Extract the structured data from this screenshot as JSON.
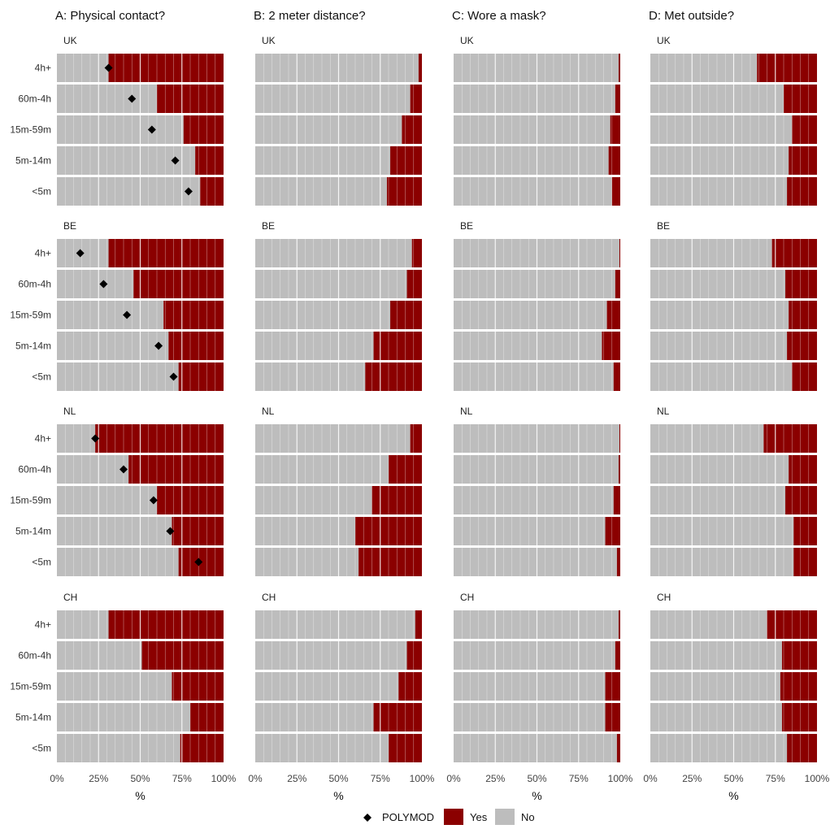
{
  "chart_data": {
    "type": "bar",
    "orientation": "horizontal-stacked-100",
    "panels_x_label": "%",
    "x_ticks": [
      "0%",
      "25%",
      "50%",
      "75%",
      "100%"
    ],
    "xlim": [
      0,
      100
    ],
    "categories": [
      "4h+",
      "60m-4h",
      "15m-59m",
      "5m-14m",
      "<5m"
    ],
    "countries": [
      "UK",
      "BE",
      "NL",
      "CH"
    ],
    "colors": {
      "no": "#bdbdbd",
      "yes": "#8b0000",
      "polymod": "#000000",
      "grid": "#ffffff"
    },
    "legend": {
      "position": "bottom",
      "items": [
        {
          "key": "polymod",
          "label": "POLYMOD",
          "icon": "diamond-icon"
        },
        {
          "key": "yes",
          "label": "Yes"
        },
        {
          "key": "no",
          "label": "No"
        }
      ]
    },
    "columns": [
      {
        "title": "A: Physical contact?",
        "yes_pct": {
          "UK": [
            69,
            40,
            24,
            17,
            14
          ],
          "BE": [
            69,
            54,
            36,
            33,
            27
          ],
          "NL": [
            77,
            57,
            40,
            31,
            27
          ],
          "CH": [
            69,
            49,
            31,
            20,
            26
          ]
        },
        "polymod_pct": {
          "UK": [
            31,
            45,
            57,
            71,
            79
          ],
          "BE": [
            14,
            28,
            42,
            61,
            70
          ],
          "NL": [
            23,
            40,
            58,
            68,
            85
          ],
          "CH": [
            null,
            null,
            null,
            null,
            null
          ]
        }
      },
      {
        "title": "B: 2 meter distance?",
        "yes_pct": {
          "UK": [
            2,
            7,
            12,
            19,
            21
          ],
          "BE": [
            6,
            9,
            19,
            29,
            34
          ],
          "NL": [
            7,
            20,
            30,
            40,
            38
          ],
          "CH": [
            4,
            9,
            14,
            29,
            20
          ]
        }
      },
      {
        "title": "C: Wore a mask?",
        "yes_pct": {
          "UK": [
            1,
            3,
            6,
            7,
            5
          ],
          "BE": [
            0.5,
            3,
            8,
            11,
            4
          ],
          "NL": [
            0.5,
            1,
            4,
            9,
            2
          ],
          "CH": [
            1,
            3,
            9,
            9,
            2
          ]
        }
      },
      {
        "title": "D: Met outside?",
        "yes_pct": {
          "UK": [
            36,
            20,
            15,
            17,
            18
          ],
          "BE": [
            27,
            19,
            17,
            18,
            15
          ],
          "NL": [
            32,
            17,
            19,
            14,
            14
          ],
          "CH": [
            30,
            21,
            22,
            21,
            18
          ]
        }
      }
    ]
  }
}
